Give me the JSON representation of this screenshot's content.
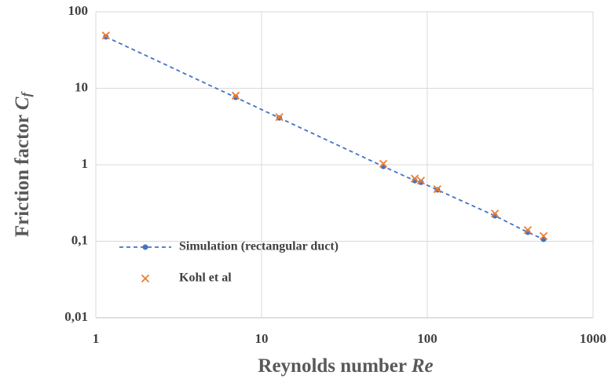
{
  "chart_data": {
    "type": "scatter",
    "xlabel": {
      "text": "Reynolds number",
      "symbol": "Re"
    },
    "ylabel": {
      "text": "Friction factor",
      "symbol": "C",
      "subscript": "f"
    },
    "xlog": true,
    "ylog": true,
    "grid": true,
    "xlim": [
      1,
      1000
    ],
    "xticks": [
      1,
      10,
      100,
      1000
    ],
    "ylim": [
      0.01,
      100
    ],
    "yticks": [
      {
        "value": 0.01,
        "label": "0,01"
      },
      {
        "value": 0.1,
        "label": "0,1"
      },
      1,
      10,
      100
    ],
    "legend": "lower left",
    "series": [
      {
        "name": "Simulation (rectangular duct)",
        "color": "#4472c4",
        "marker": "circle",
        "line": "dashed",
        "x": [
          1.15,
          6.98,
          12.8,
          54.3,
          84,
          91.6,
          115,
          256,
          404,
          503
        ],
        "values": [
          47,
          7.6,
          4.1,
          0.95,
          0.62,
          0.59,
          0.47,
          0.215,
          0.131,
          0.106
        ]
      },
      {
        "name": "Kohl et al",
        "color": "#ed7d31",
        "marker": "x",
        "x": [
          1.15,
          6.98,
          12.8,
          54.3,
          84,
          91.6,
          115,
          256,
          404,
          503
        ],
        "values": [
          49,
          8.0,
          4.2,
          1.03,
          0.66,
          0.62,
          0.48,
          0.23,
          0.14,
          0.117
        ]
      }
    ]
  }
}
